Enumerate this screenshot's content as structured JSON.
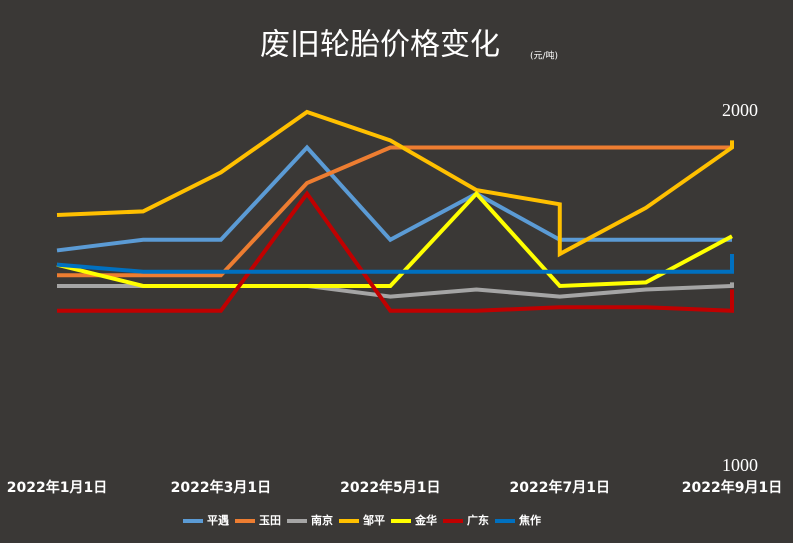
{
  "chart_data": {
    "type": "line",
    "title": "废旧轮胎价格变化",
    "subtitle": "(元/吨)",
    "ylim": [
      1000,
      2000
    ],
    "yticks": [
      1000,
      2000
    ],
    "xlim": [
      "2022-01-01",
      "2022-09-01"
    ],
    "xticks": [
      {
        "value": "2022-01-01",
        "label": "2022年1月1日"
      },
      {
        "value": "2022-03-01",
        "label": "2022年3月1日"
      },
      {
        "value": "2022-05-01",
        "label": "2022年5月1日"
      },
      {
        "value": "2022-07-01",
        "label": "2022年7月1日"
      },
      {
        "value": "2022-09-01",
        "label": "2022年9月1日"
      }
    ],
    "series": [
      {
        "name": "平遇",
        "color": "#5b9bd5",
        "x": [
          "2022-01-01",
          "2022-02-01",
          "2022-03-01",
          "2022-04-01",
          "2022-05-01",
          "2022-06-01",
          "2022-07-01",
          "2022-08-01",
          "2022-09-01"
        ],
        "values": [
          1610,
          1640,
          1640,
          1900,
          1640,
          1770,
          1640,
          1640,
          1640
        ]
      },
      {
        "name": "玉田",
        "color": "#ed7d31",
        "x": [
          "2022-01-01",
          "2022-02-01",
          "2022-03-01",
          "2022-04-01",
          "2022-05-01",
          "2022-06-01",
          "2022-07-01",
          "2022-08-01",
          "2022-09-01"
        ],
        "values": [
          1540,
          1540,
          1540,
          1800,
          1900,
          1900,
          1900,
          1900,
          1900
        ]
      },
      {
        "name": "南京",
        "color": "#a5a5a5",
        "x": [
          "2022-01-01",
          "2022-02-01",
          "2022-03-01",
          "2022-04-01",
          "2022-05-01",
          "2022-06-01",
          "2022-07-01",
          "2022-08-01",
          "2022-09-01",
          "2022-09-01"
        ],
        "values": [
          1510,
          1510,
          1510,
          1510,
          1480,
          1500,
          1480,
          1500,
          1510,
          1520
        ]
      },
      {
        "name": "邹平",
        "color": "#ffc000",
        "x": [
          "2022-01-01",
          "2022-02-01",
          "2022-03-01",
          "2022-04-01",
          "2022-05-01",
          "2022-06-01",
          "2022-07-01",
          "2022-07-01",
          "2022-08-01",
          "2022-09-01",
          "2022-09-01"
        ],
        "values": [
          1710,
          1720,
          1830,
          2000,
          1920,
          1780,
          1740,
          1600,
          1730,
          1900,
          1920
        ]
      },
      {
        "name": "金华",
        "color": "#ffff00",
        "x": [
          "2022-01-01",
          "2022-02-01",
          "2022-03-01",
          "2022-04-01",
          "2022-05-01",
          "2022-06-01",
          "2022-07-01",
          "2022-08-01",
          "2022-09-01"
        ],
        "values": [
          1570,
          1510,
          1510,
          1510,
          1510,
          1770,
          1510,
          1520,
          1650
        ]
      },
      {
        "name": "广东",
        "color": "#c00000",
        "x": [
          "2022-01-01",
          "2022-02-01",
          "2022-03-01",
          "2022-04-01",
          "2022-05-01",
          "2022-06-01",
          "2022-07-01",
          "2022-08-01",
          "2022-09-01",
          "2022-09-01"
        ],
        "values": [
          1440,
          1440,
          1440,
          1770,
          1440,
          1440,
          1450,
          1450,
          1440,
          1500
        ]
      },
      {
        "name": "焦作",
        "color": "#0070c0",
        "x": [
          "2022-01-01",
          "2022-02-01",
          "2022-03-01",
          "2022-04-01",
          "2022-05-01",
          "2022-06-01",
          "2022-07-01",
          "2022-08-01",
          "2022-09-01",
          "2022-09-01"
        ],
        "values": [
          1570,
          1550,
          1550,
          1550,
          1550,
          1550,
          1550,
          1550,
          1550,
          1600
        ]
      }
    ]
  }
}
